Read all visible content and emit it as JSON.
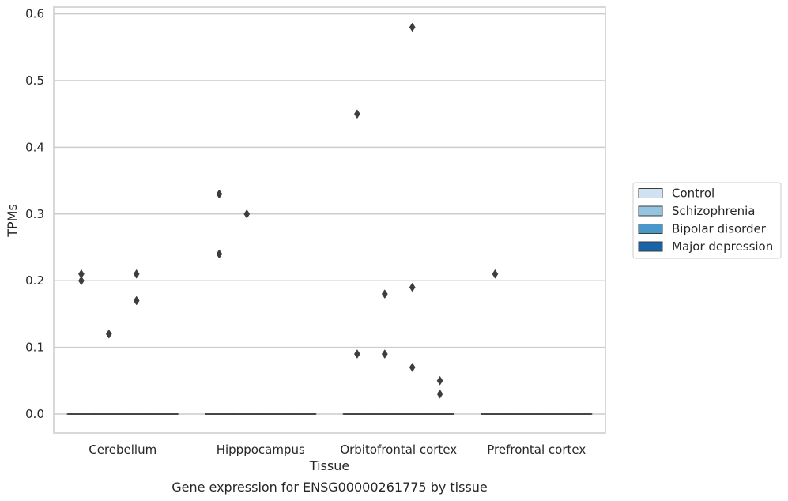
{
  "chart_data": {
    "type": "boxplot",
    "xlabel": "Tissue",
    "ylabel": "TPMs",
    "caption": "Gene expression for ENSG00000261775 by tissue",
    "categories": [
      "Cerebellum",
      "Hipppocampus",
      "Orbitofrontal cortex",
      "Prefrontal cortex"
    ],
    "ylim": [
      -0.03,
      0.61
    ],
    "yticks": [
      0.0,
      0.1,
      0.2,
      0.3,
      0.4,
      0.5,
      0.6
    ],
    "ytick_labels": [
      "0.0",
      "0.1",
      "0.2",
      "0.3",
      "0.4",
      "0.5",
      "0.6"
    ],
    "grid": true,
    "legend_position": "right",
    "series": [
      {
        "name": "Control",
        "color": "#d0e1f2",
        "boxes": [
          {
            "q1": 0,
            "median": 0,
            "q3": 0
          },
          {
            "q1": 0,
            "median": 0,
            "q3": 0
          },
          {
            "q1": 0,
            "median": 0,
            "q3": 0
          },
          {
            "q1": 0,
            "median": 0,
            "q3": 0
          }
        ],
        "outliers": [
          [
            0.21,
            0.2
          ],
          [
            0.33,
            0.24
          ],
          [
            0.45,
            0.09
          ],
          [
            0.21
          ]
        ]
      },
      {
        "name": "Schizophrenia",
        "color": "#94c4df",
        "boxes": [
          {
            "q1": 0,
            "median": 0,
            "q3": 0
          },
          {
            "q1": 0,
            "median": 0,
            "q3": 0
          },
          {
            "q1": 0,
            "median": 0,
            "q3": 0
          },
          {
            "q1": 0,
            "median": 0,
            "q3": 0
          }
        ],
        "outliers": [
          [
            0.12
          ],
          [
            0.3
          ],
          [
            0.18,
            0.09
          ],
          []
        ]
      },
      {
        "name": "Bipolar disorder",
        "color": "#4a98c9",
        "boxes": [
          {
            "q1": 0,
            "median": 0,
            "q3": 0
          },
          {
            "q1": 0,
            "median": 0,
            "q3": 0
          },
          {
            "q1": 0,
            "median": 0,
            "q3": 0
          },
          {
            "q1": 0,
            "median": 0,
            "q3": 0
          }
        ],
        "outliers": [
          [
            0.21,
            0.17
          ],
          [],
          [
            0.58,
            0.19,
            0.07
          ],
          []
        ]
      },
      {
        "name": "Major depression",
        "color": "#1764ab",
        "boxes": [
          {
            "q1": 0,
            "median": 0,
            "q3": 0
          },
          {
            "q1": 0,
            "median": 0,
            "q3": 0
          },
          {
            "q1": 0,
            "median": 0,
            "q3": 0
          },
          {
            "q1": 0,
            "median": 0,
            "q3": 0
          }
        ],
        "outliers": [
          [],
          [],
          [
            0.05,
            0.03
          ],
          []
        ]
      }
    ]
  }
}
